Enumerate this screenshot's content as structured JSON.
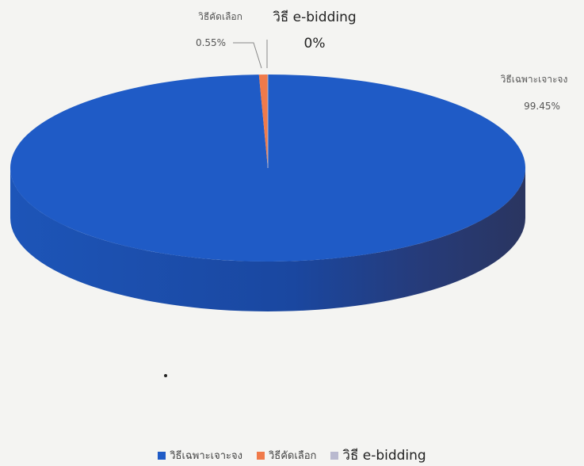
{
  "chart_data": {
    "type": "pie",
    "title": "",
    "style": "3d",
    "series": [
      {
        "name": "วิธีเฉพาะเจาะจง",
        "value": 99.45,
        "label": "99.45%",
        "color": "#1f5bc6"
      },
      {
        "name": "วิธีคัดเลือก",
        "value": 0.55,
        "label": "0.55%",
        "color": "#f07a4a"
      },
      {
        "name": "วิธี e-bidding",
        "value": 0,
        "label": "0%",
        "color": "#b9b9cf"
      }
    ],
    "legend": {
      "position": "bottom"
    }
  }
}
